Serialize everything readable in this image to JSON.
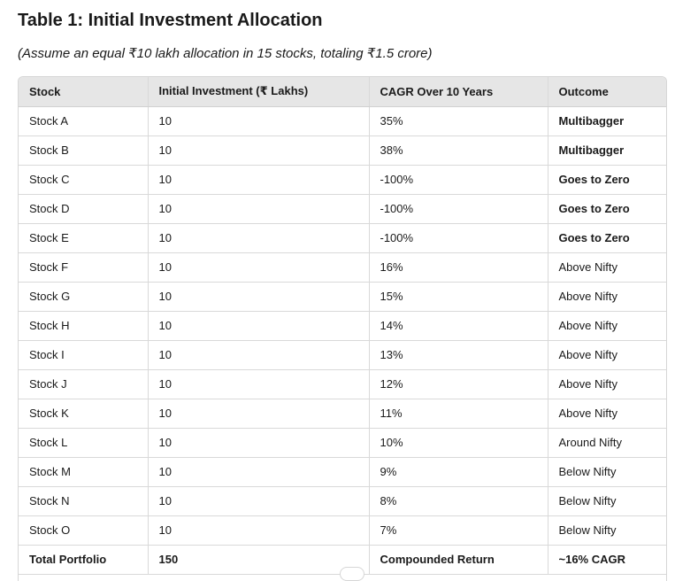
{
  "title": "Table 1: Initial Investment Allocation",
  "subtitle": "(Assume an equal ₹10 lakh allocation in 15 stocks, totaling ₹1.5 crore)",
  "table": {
    "headers": [
      "Stock",
      "Initial Investment (₹ Lakhs)",
      "CAGR Over 10 Years",
      "Outcome"
    ],
    "rows": [
      {
        "stock": "Stock A",
        "investment": "10",
        "cagr": "35%",
        "outcome": "Multibagger",
        "emphasis": true
      },
      {
        "stock": "Stock B",
        "investment": "10",
        "cagr": "38%",
        "outcome": "Multibagger",
        "emphasis": true
      },
      {
        "stock": "Stock C",
        "investment": "10",
        "cagr": "-100%",
        "outcome": "Goes to Zero",
        "emphasis": true
      },
      {
        "stock": "Stock D",
        "investment": "10",
        "cagr": "-100%",
        "outcome": "Goes to Zero",
        "emphasis": true
      },
      {
        "stock": "Stock E",
        "investment": "10",
        "cagr": "-100%",
        "outcome": "Goes to Zero",
        "emphasis": true
      },
      {
        "stock": "Stock F",
        "investment": "10",
        "cagr": "16%",
        "outcome": "Above Nifty",
        "emphasis": false
      },
      {
        "stock": "Stock G",
        "investment": "10",
        "cagr": "15%",
        "outcome": "Above Nifty",
        "emphasis": false
      },
      {
        "stock": "Stock H",
        "investment": "10",
        "cagr": "14%",
        "outcome": "Above Nifty",
        "emphasis": false
      },
      {
        "stock": "Stock I",
        "investment": "10",
        "cagr": "13%",
        "outcome": "Above Nifty",
        "emphasis": false
      },
      {
        "stock": "Stock J",
        "investment": "10",
        "cagr": "12%",
        "outcome": "Above Nifty",
        "emphasis": false
      },
      {
        "stock": "Stock K",
        "investment": "10",
        "cagr": "11%",
        "outcome": "Above Nifty",
        "emphasis": false
      },
      {
        "stock": "Stock L",
        "investment": "10",
        "cagr": "10%",
        "outcome": "Around Nifty",
        "emphasis": false
      },
      {
        "stock": "Stock M",
        "investment": "10",
        "cagr": "9%",
        "outcome": "Below Nifty",
        "emphasis": false
      },
      {
        "stock": "Stock N",
        "investment": "10",
        "cagr": "8%",
        "outcome": "Below Nifty",
        "emphasis": false
      },
      {
        "stock": "Stock O",
        "investment": "10",
        "cagr": "7%",
        "outcome": "Below Nifty",
        "emphasis": false
      }
    ],
    "total": {
      "stock": "Total Portfolio",
      "investment": "150",
      "cagr": "Compounded Return",
      "outcome": "~16% CAGR"
    }
  }
}
